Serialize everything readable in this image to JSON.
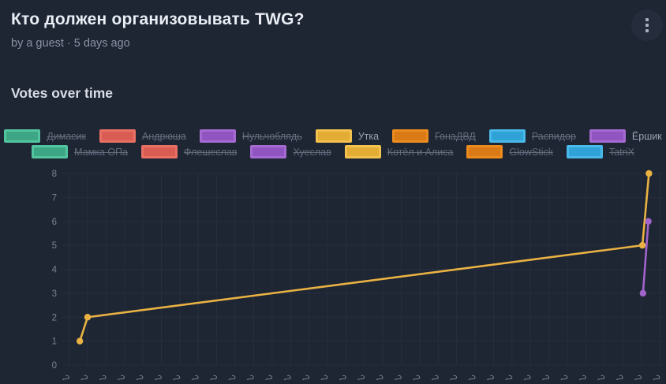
{
  "header": {
    "title": "Кто должен организовывать TWG?",
    "byline": "by a guest · 5 days ago"
  },
  "section": {
    "heading": "Votes over time"
  },
  "colors": {
    "background": "#1e2533",
    "grid": "#272e3f",
    "axis_text": "#7b8394",
    "title_text": "#e9edf4",
    "muted_text": "#8b93a5"
  },
  "chart_data": {
    "type": "line",
    "title": "Votes over time",
    "xlabel": "",
    "ylabel": "",
    "ylim": [
      0,
      8
    ],
    "yticks": [
      0,
      1,
      2,
      3,
      4,
      5,
      6,
      7,
      8
    ],
    "x_tick_count": 33,
    "x_tick_glyph": "2",
    "x_axis_note": "rotated date labels cut off at bottom edge of screenshot",
    "grid": true,
    "legend_position": "top",
    "legend_rows": [
      [
        {
          "name": "Димасик",
          "fill": "#3da685",
          "border": "#52c59e",
          "struck": true
        },
        {
          "name": "Андрюша",
          "fill": "#d95d52",
          "border": "#e87065",
          "struck": true
        },
        {
          "name": "Нульчоблядь",
          "fill": "#9055c0",
          "border": "#a56ad2",
          "struck": true
        },
        {
          "name": "Утка",
          "fill": "#e3ac35",
          "border": "#f2c14e",
          "struck": false
        },
        {
          "name": "ГонаДВД",
          "fill": "#d97a16",
          "border": "#ec8b1d",
          "struck": true
        },
        {
          "name": "Распидор",
          "fill": "#2fa3d7",
          "border": "#4ab8e8",
          "struck": true
        },
        {
          "name": "Ёршик",
          "fill": "#9055c0",
          "border": "#a56ad2",
          "struck": false
        }
      ],
      [
        {
          "name": "Мамка ОПа",
          "fill": "#3da685",
          "border": "#52c59e",
          "struck": true
        },
        {
          "name": "Флешеслав",
          "fill": "#d95d52",
          "border": "#e87065",
          "struck": true
        },
        {
          "name": "Хуеслав",
          "fill": "#9055c0",
          "border": "#a56ad2",
          "struck": true
        },
        {
          "name": "Котёл и Алиса",
          "fill": "#e3ac35",
          "border": "#f2c14e",
          "struck": true
        },
        {
          "name": "GlowStick",
          "fill": "#d97a16",
          "border": "#ec8b1d",
          "struck": true
        },
        {
          "name": "TatriX",
          "fill": "#2fa3d7",
          "border": "#4ab8e8",
          "struck": true
        }
      ]
    ],
    "series": [
      {
        "name": "Утка",
        "color": "#e9b243",
        "points": [
          [
            0.028,
            1
          ],
          [
            0.041,
            2
          ],
          [
            0.971,
            5
          ],
          [
            0.982,
            8
          ]
        ]
      },
      {
        "name": "Ёршик",
        "color": "#a164cc",
        "points": [
          [
            0.972,
            3
          ],
          [
            0.981,
            6
          ]
        ]
      }
    ],
    "hidden_series": [
      "Димасик",
      "Андрюша",
      "Нульчоблядь",
      "ГонаДВД",
      "Распидор",
      "Мамка ОПа",
      "Флешеслав",
      "Хуеслав",
      "Котёл и Алиса",
      "GlowStick",
      "TatriX"
    ]
  }
}
